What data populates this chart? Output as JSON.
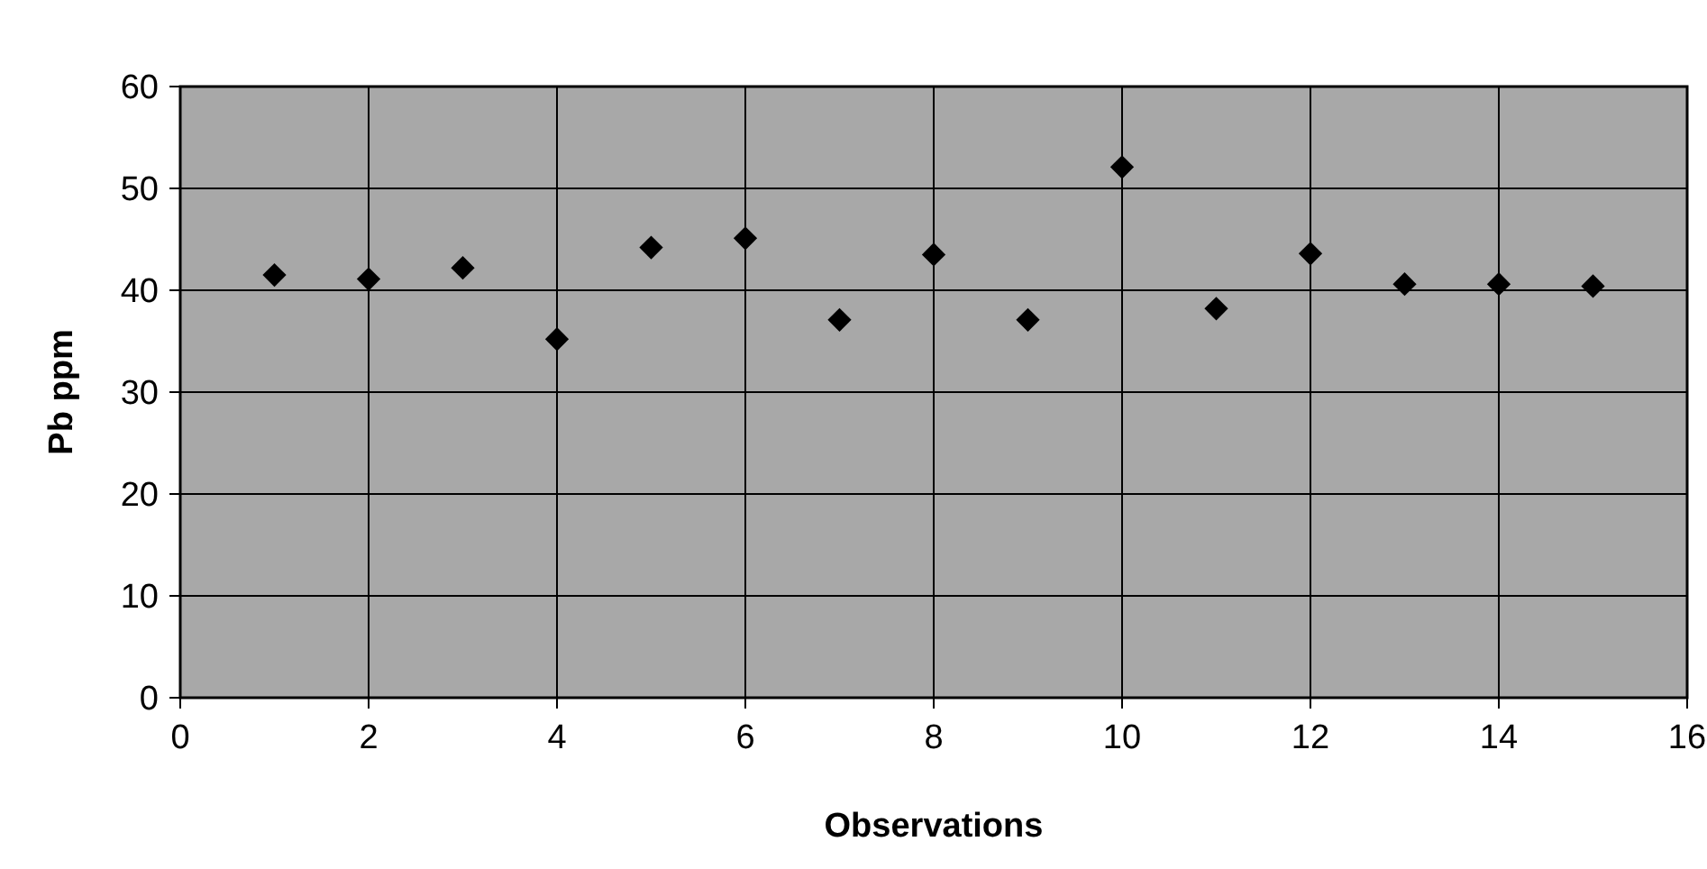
{
  "chart_data": {
    "type": "scatter",
    "xlabel": "Observations",
    "ylabel": "Pb ppm",
    "x": [
      1,
      2,
      3,
      4,
      5,
      6,
      7,
      8,
      9,
      10,
      11,
      12,
      13,
      14,
      15
    ],
    "series": [
      {
        "color": "#000000",
        "values": [
          41.5,
          41.1,
          42.2,
          35.2,
          44.2,
          45.1,
          37.1,
          43.5,
          37.1,
          52.1,
          38.2,
          43.6,
          40.6,
          40.6,
          40.4
        ]
      }
    ],
    "xlim": [
      0,
      16
    ],
    "xticks": [
      0,
      2,
      4,
      6,
      8,
      10,
      12,
      14,
      16
    ],
    "ylim": [
      0,
      60
    ],
    "yticks": [
      0,
      10,
      20,
      30,
      40,
      50,
      60
    ],
    "grid": true,
    "marker": "diamond"
  }
}
